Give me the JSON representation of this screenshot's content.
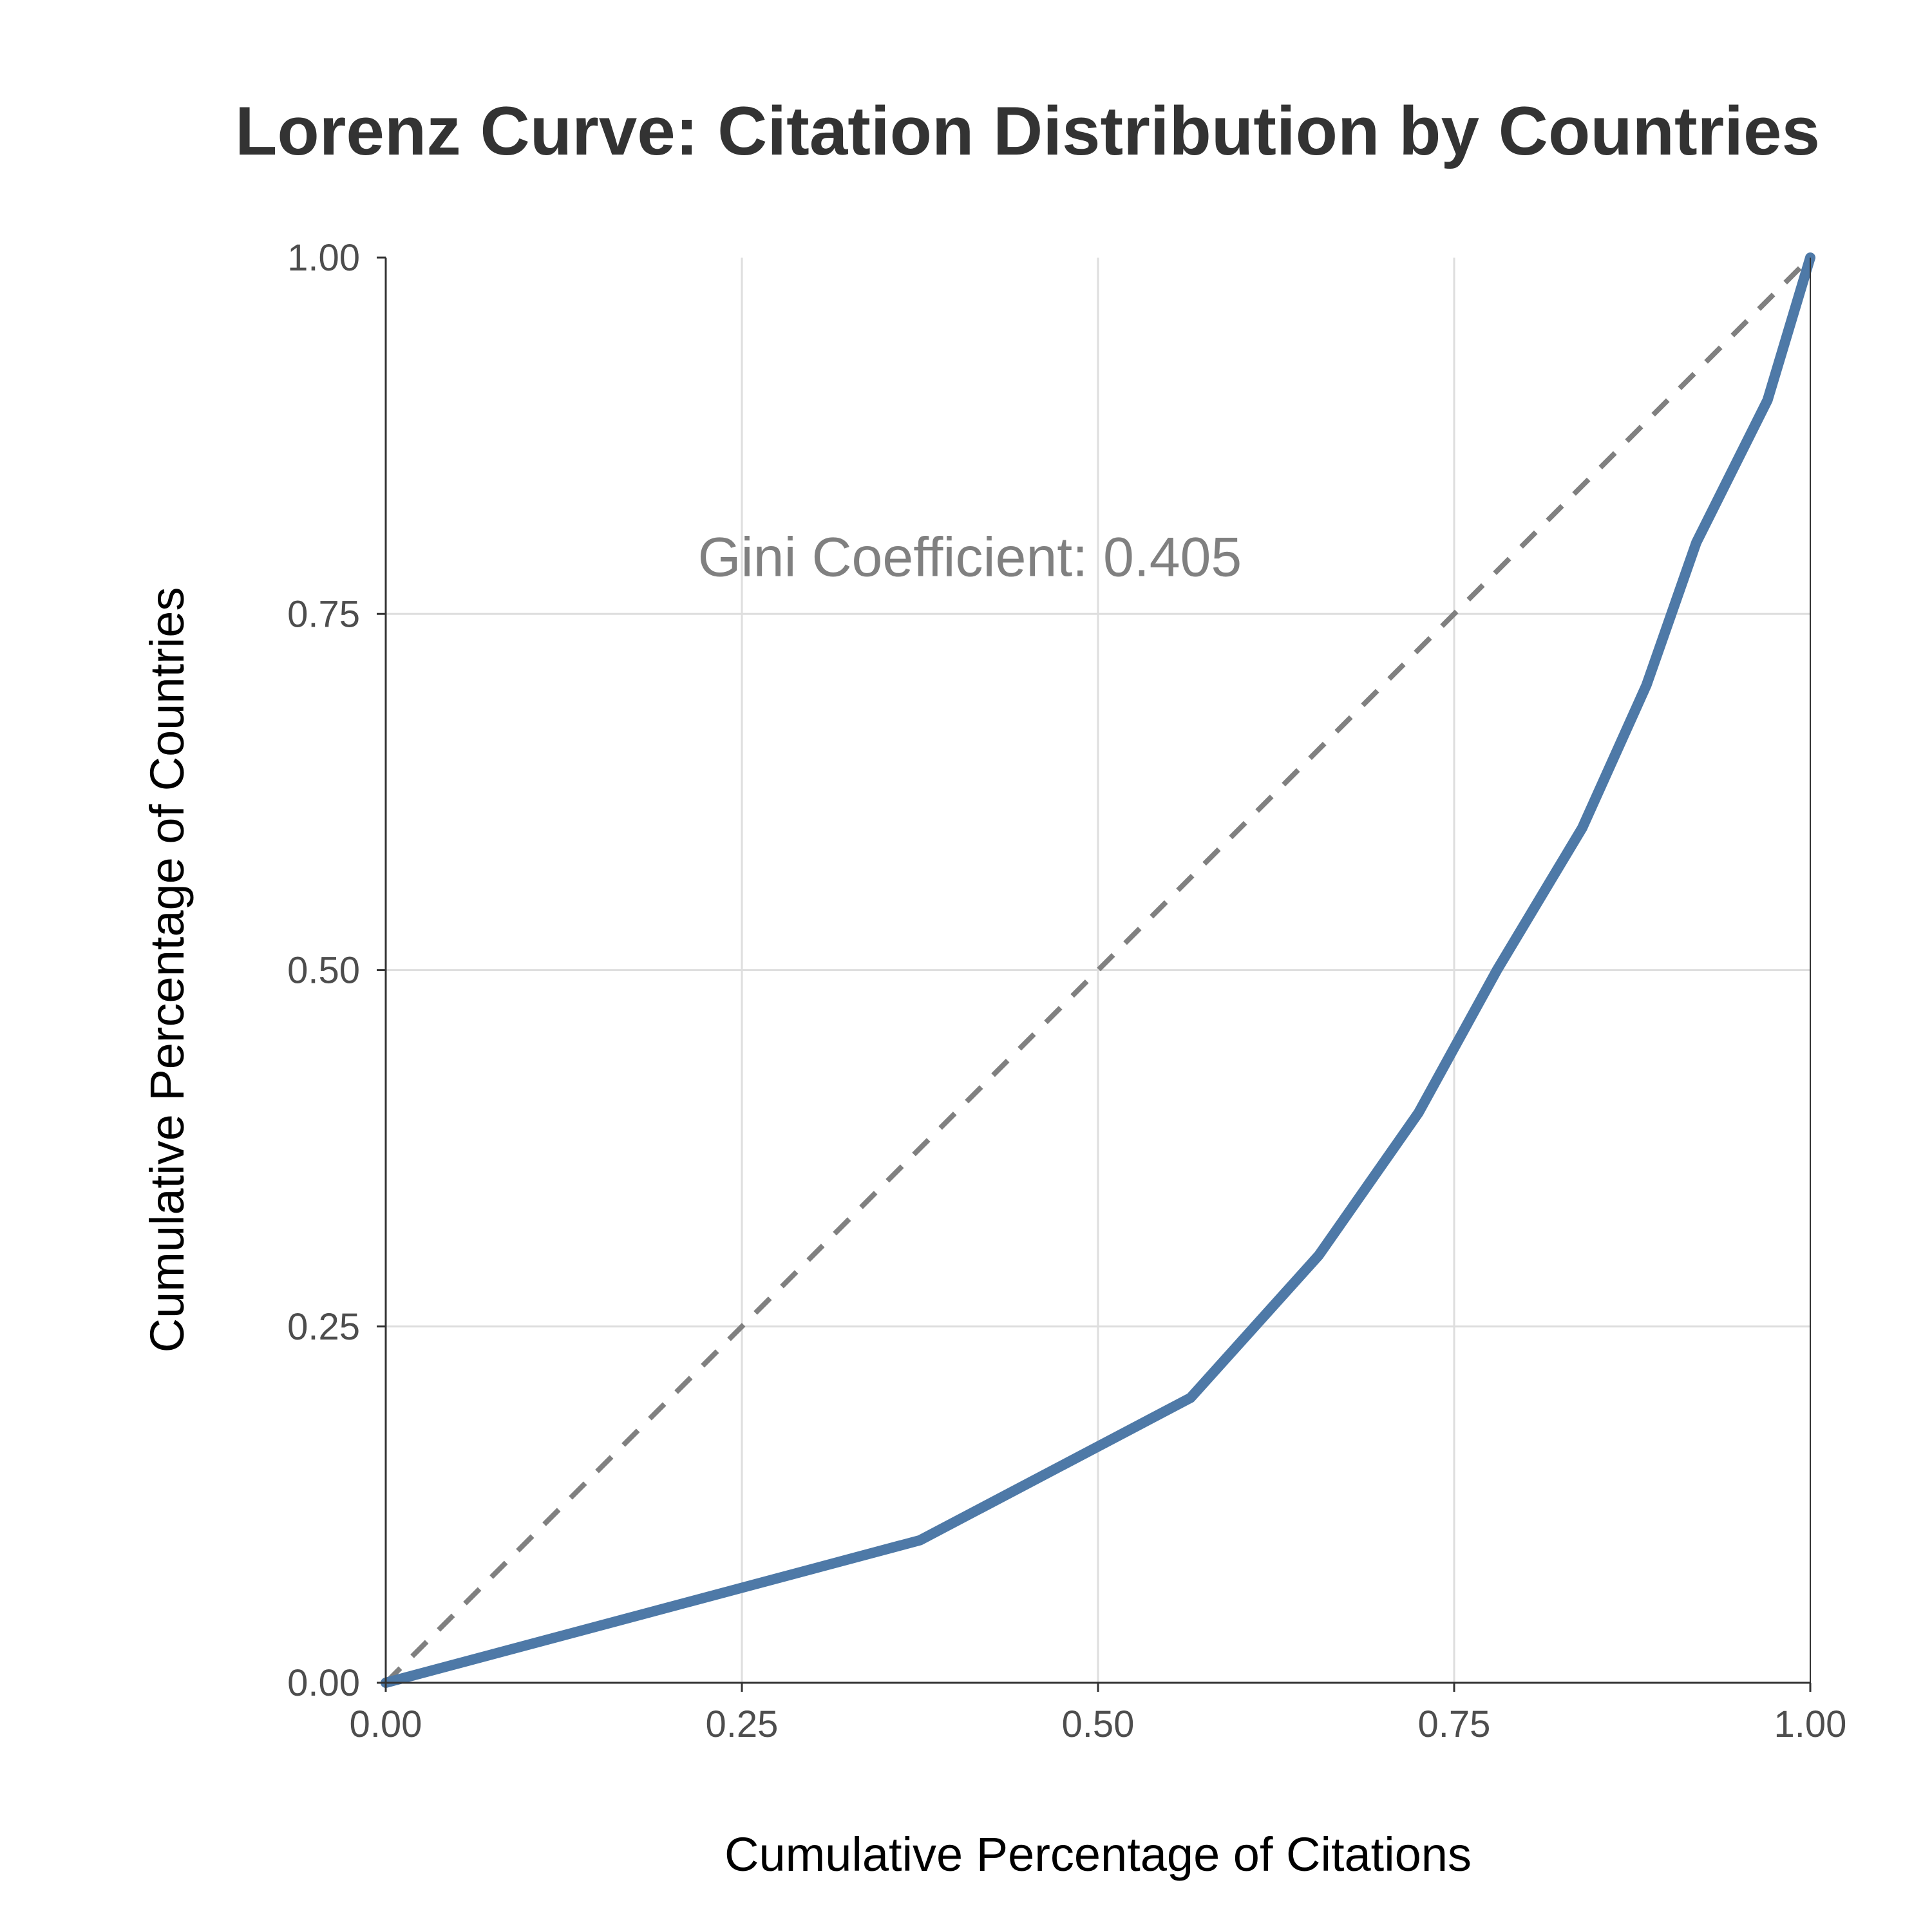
{
  "chart_data": {
    "type": "line",
    "title": "Lorenz Curve: Citation Distribution by Countries",
    "xlabel": "Cumulative Percentage of Citations",
    "ylabel": "Cumulative Percentage of Countries",
    "xlim": [
      0,
      1
    ],
    "ylim": [
      0,
      1
    ],
    "grid": true,
    "x_ticks": [
      "0.00",
      "0.25",
      "0.50",
      "0.75",
      "1.00"
    ],
    "y_ticks": [
      "0.00",
      "0.25",
      "0.50",
      "0.75",
      "1.00"
    ],
    "x_tick_values": [
      0,
      0.25,
      0.5,
      0.75,
      1
    ],
    "y_tick_values": [
      0,
      0.25,
      0.5,
      0.75,
      1
    ],
    "series": [
      {
        "style": "solid",
        "color": "#4e79a7",
        "x": [
          0,
          0.375,
          0.565,
          0.655,
          0.725,
          0.78,
          0.84,
          0.885,
          0.92,
          0.97,
          1.0
        ],
        "y": [
          0,
          0.1,
          0.2,
          0.3,
          0.4,
          0.5,
          0.6,
          0.7,
          0.8,
          0.9,
          1.0
        ]
      },
      {
        "style": "dashed",
        "color": "#808080",
        "x": [
          0,
          1
        ],
        "y": [
          0,
          1
        ]
      }
    ],
    "annotations": [
      {
        "text": "Gini Coefficient: 0.405",
        "x": 0.41,
        "y": 0.79
      }
    ]
  }
}
